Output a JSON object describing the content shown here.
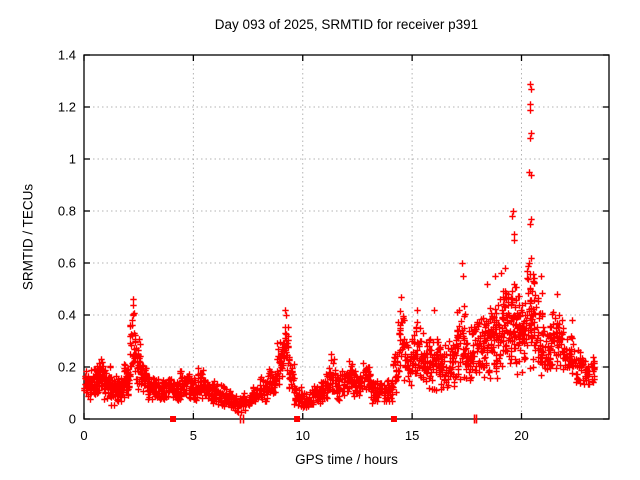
{
  "chart_data": {
    "type": "scatter",
    "title": "Day 093 of 2025, SRMTID for receiver p391",
    "xlabel": "GPS time / hours",
    "ylabel": "SRMTID / TECUs",
    "xlim": [
      0,
      24
    ],
    "ylim": [
      0,
      1.4
    ],
    "xticks": [
      0,
      5,
      10,
      15,
      20
    ],
    "xtick_labels": [
      "0",
      "5",
      "10",
      "15",
      "20"
    ],
    "yticks": [
      0,
      0.2,
      0.4,
      0.6,
      0.8,
      1,
      1.2,
      1.4
    ],
    "ytick_labels": [
      "0",
      "0.2",
      "0.4",
      "0.6",
      "0.8",
      "1",
      "1.2",
      "1.4"
    ],
    "grid": true,
    "legend": "none",
    "marker": "plus",
    "marker_color": "#ff0000",
    "grid_color": "#b3b3b3",
    "axis_color": "#000000",
    "series": [
      {
        "name": "srmtid-points",
        "marker": "plus",
        "bands": [
          [
            0.0,
            0.3,
            34,
            0.07,
            0.19
          ],
          [
            0.3,
            0.6,
            36,
            0.08,
            0.2
          ],
          [
            0.6,
            0.9,
            40,
            0.09,
            0.24
          ],
          [
            0.9,
            1.2,
            40,
            0.07,
            0.21
          ],
          [
            1.2,
            1.5,
            38,
            0.05,
            0.18
          ],
          [
            1.5,
            1.8,
            36,
            0.06,
            0.17
          ],
          [
            1.8,
            2.1,
            40,
            0.08,
            0.23
          ],
          [
            2.1,
            2.35,
            30,
            0.14,
            0.42
          ],
          [
            2.35,
            2.6,
            30,
            0.1,
            0.32
          ],
          [
            2.6,
            2.9,
            30,
            0.09,
            0.22
          ],
          [
            2.9,
            3.2,
            34,
            0.06,
            0.17
          ],
          [
            3.2,
            3.6,
            40,
            0.06,
            0.16
          ],
          [
            3.6,
            4.0,
            40,
            0.07,
            0.17
          ],
          [
            4.0,
            4.4,
            36,
            0.06,
            0.15
          ],
          [
            4.4,
            4.8,
            40,
            0.07,
            0.2
          ],
          [
            4.8,
            5.2,
            40,
            0.06,
            0.17
          ],
          [
            5.2,
            5.6,
            40,
            0.07,
            0.21
          ],
          [
            5.6,
            6.0,
            40,
            0.06,
            0.16
          ],
          [
            6.0,
            6.4,
            36,
            0.05,
            0.14
          ],
          [
            6.4,
            6.8,
            34,
            0.04,
            0.12
          ],
          [
            6.8,
            7.2,
            32,
            0.02,
            0.1
          ],
          [
            7.2,
            7.6,
            32,
            0.03,
            0.11
          ],
          [
            7.6,
            8.0,
            34,
            0.05,
            0.13
          ],
          [
            8.0,
            8.4,
            38,
            0.06,
            0.17
          ],
          [
            8.4,
            8.8,
            38,
            0.08,
            0.2
          ],
          [
            8.8,
            9.1,
            34,
            0.13,
            0.32
          ],
          [
            9.1,
            9.35,
            28,
            0.16,
            0.4
          ],
          [
            9.35,
            9.6,
            26,
            0.09,
            0.26
          ],
          [
            9.6,
            10.0,
            30,
            0.04,
            0.14
          ],
          [
            10.0,
            10.4,
            30,
            0.03,
            0.11
          ],
          [
            10.4,
            10.8,
            32,
            0.05,
            0.14
          ],
          [
            10.8,
            11.2,
            36,
            0.07,
            0.18
          ],
          [
            11.2,
            11.5,
            30,
            0.09,
            0.26
          ],
          [
            11.5,
            11.9,
            36,
            0.07,
            0.19
          ],
          [
            11.9,
            12.3,
            38,
            0.09,
            0.23
          ],
          [
            12.3,
            12.7,
            36,
            0.08,
            0.2
          ],
          [
            12.7,
            13.1,
            36,
            0.09,
            0.23
          ],
          [
            13.1,
            13.6,
            40,
            0.06,
            0.17
          ],
          [
            13.6,
            14.1,
            36,
            0.05,
            0.16
          ],
          [
            14.1,
            14.35,
            22,
            0.09,
            0.26
          ],
          [
            14.35,
            14.65,
            28,
            0.15,
            0.45
          ],
          [
            14.65,
            15.0,
            30,
            0.12,
            0.33
          ],
          [
            15.0,
            15.4,
            38,
            0.13,
            0.4
          ],
          [
            15.4,
            15.8,
            38,
            0.11,
            0.35
          ],
          [
            15.8,
            16.2,
            38,
            0.1,
            0.35
          ],
          [
            16.2,
            16.6,
            38,
            0.1,
            0.3
          ],
          [
            16.6,
            17.0,
            38,
            0.11,
            0.32
          ],
          [
            17.0,
            17.4,
            42,
            0.14,
            0.48
          ],
          [
            17.4,
            17.8,
            38,
            0.12,
            0.36
          ],
          [
            17.8,
            18.2,
            42,
            0.13,
            0.42
          ],
          [
            18.2,
            18.6,
            46,
            0.14,
            0.46
          ],
          [
            18.6,
            19.0,
            46,
            0.15,
            0.48
          ],
          [
            19.0,
            19.4,
            50,
            0.16,
            0.52
          ],
          [
            19.4,
            19.8,
            50,
            0.15,
            0.55
          ],
          [
            19.8,
            20.2,
            50,
            0.17,
            0.52
          ],
          [
            20.2,
            20.6,
            54,
            0.18,
            0.62
          ],
          [
            20.6,
            21.0,
            46,
            0.16,
            0.5
          ],
          [
            21.0,
            21.4,
            40,
            0.14,
            0.4
          ],
          [
            21.4,
            21.9,
            46,
            0.16,
            0.46
          ],
          [
            21.9,
            22.4,
            40,
            0.12,
            0.36
          ],
          [
            22.4,
            22.9,
            36,
            0.1,
            0.28
          ],
          [
            22.9,
            23.35,
            30,
            0.1,
            0.26
          ]
        ],
        "outliers": [
          [
            2.22,
            0.46
          ],
          [
            2.24,
            0.44
          ],
          [
            2.26,
            0.4
          ],
          [
            9.18,
            0.42
          ],
          [
            9.22,
            0.4
          ],
          [
            14.5,
            0.47
          ],
          [
            15.2,
            0.42
          ],
          [
            16.0,
            0.42
          ],
          [
            17.28,
            0.6
          ],
          [
            17.32,
            0.55
          ],
          [
            18.42,
            0.52
          ],
          [
            18.8,
            0.55
          ],
          [
            19.05,
            0.56
          ],
          [
            19.25,
            0.58
          ],
          [
            19.58,
            0.78
          ],
          [
            19.62,
            0.8
          ],
          [
            19.64,
            0.71
          ],
          [
            19.66,
            0.69
          ],
          [
            20.36,
            0.95
          ],
          [
            20.44,
            0.94
          ],
          [
            20.4,
            1.29
          ],
          [
            20.42,
            1.27
          ],
          [
            20.38,
            1.21
          ],
          [
            20.4,
            1.19
          ],
          [
            20.42,
            1.1
          ],
          [
            20.4,
            1.08
          ],
          [
            20.42,
            0.77
          ],
          [
            20.4,
            0.75
          ],
          [
            20.45,
            0.62
          ],
          [
            20.35,
            0.6
          ],
          [
            20.9,
            0.55
          ],
          [
            21.6,
            0.48
          ],
          [
            22.3,
            0.38
          ]
        ]
      },
      {
        "name": "axis-squares",
        "marker": "square",
        "points": [
          [
            4.07,
            0
          ],
          [
            9.74,
            0
          ],
          [
            14.17,
            0
          ]
        ]
      },
      {
        "name": "axis-bars",
        "marker": "vbar",
        "points": [
          [
            7.15,
            0
          ],
          [
            7.25,
            0
          ],
          [
            17.85,
            0
          ],
          [
            17.93,
            0
          ]
        ]
      }
    ]
  }
}
